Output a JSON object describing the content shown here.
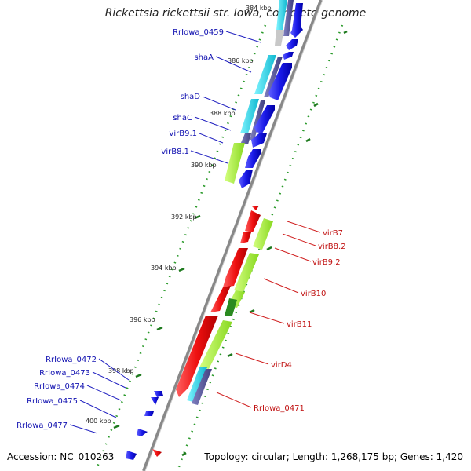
{
  "title": "Rickettsia rickettsii str. Iowa, complete genome",
  "footer": {
    "accession": "Accession: NC_010263",
    "summary": "Topology: circular; Length: 1,268,175 bp; Genes: 1,420"
  },
  "ticks": [
    "384 kbp",
    "386 kbp",
    "388 kbp",
    "390 kbp",
    "392 kbp",
    "394 kbp",
    "396 kbp",
    "398 kbp",
    "400 kbp"
  ],
  "labels_left": [
    "RrIowa_0459",
    "shaA",
    "shaD",
    "shaC",
    "virB9.1",
    "virB8.1",
    "RrIowa_0472",
    "RrIowa_0473",
    "RrIowa_0474",
    "RrIowa_0475",
    "RrIowa_0477"
  ],
  "labels_right": [
    "virB7",
    "virB8.2",
    "virB9.2",
    "virB10",
    "virB11",
    "virD4",
    "RrIowa_0471"
  ],
  "colors": {
    "forward_gene": "#1010e8",
    "reverse_gene": "#ee1010",
    "cyan_feature": "#20d8e8",
    "slate_feature": "#5a5aa0",
    "green_feature": "#a8f040",
    "dark_green_feature": "#2a8a20",
    "grey_feature": "#c8c8c8",
    "backbone": "#888888",
    "gc_dots": "#2a9a2a",
    "left_label": "#1010b0",
    "right_label": "#c01010"
  }
}
